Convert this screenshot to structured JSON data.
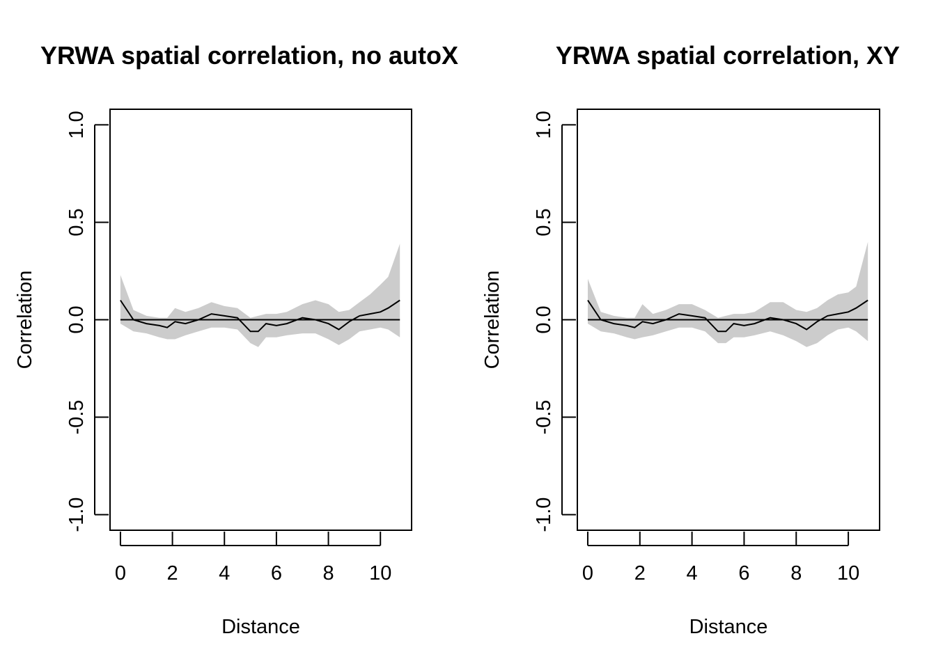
{
  "chart_data": [
    {
      "type": "area",
      "title": "YRWA spatial correlation, no autoX",
      "xlabel": "Distance",
      "ylabel": "Correlation",
      "xlim": [
        -0.4,
        11.2
      ],
      "ylim": [
        -1.08,
        1.08
      ],
      "xticks": [
        0,
        2,
        4,
        6,
        8,
        10
      ],
      "yticks": [
        -1.0,
        -0.5,
        0.0,
        0.5,
        1.0
      ],
      "xtick_labels": [
        "0",
        "2",
        "4",
        "6",
        "8",
        "10"
      ],
      "ytick_labels": [
        "-1.0",
        "-0.5",
        "0.0",
        "0.5",
        "1.0"
      ],
      "reference_line": {
        "y": 0,
        "x_from": 0,
        "x_to": 10.75
      },
      "grid": false,
      "legend": "none",
      "colors": {
        "band": "#cccccc",
        "line": "#000000"
      },
      "series": [
        {
          "x": [
            0.0,
            0.5,
            1.0,
            1.5,
            1.8,
            2.1,
            2.5,
            3.0,
            3.5,
            4.0,
            4.5,
            5.0,
            5.3,
            5.6,
            6.0,
            6.4,
            7.0,
            7.5,
            8.0,
            8.4,
            8.8,
            9.2,
            9.6,
            10.0,
            10.3,
            10.75
          ],
          "y": [
            0.1,
            0.0,
            -0.02,
            -0.03,
            -0.04,
            -0.01,
            -0.02,
            0.0,
            0.03,
            0.02,
            0.01,
            -0.06,
            -0.06,
            -0.02,
            -0.03,
            -0.02,
            0.01,
            0.0,
            -0.02,
            -0.05,
            -0.01,
            0.02,
            0.03,
            0.04,
            0.06,
            0.1
          ],
          "lower": [
            -0.02,
            -0.06,
            -0.07,
            -0.09,
            -0.1,
            -0.1,
            -0.08,
            -0.06,
            -0.04,
            -0.04,
            -0.05,
            -0.12,
            -0.14,
            -0.09,
            -0.09,
            -0.08,
            -0.07,
            -0.07,
            -0.1,
            -0.13,
            -0.1,
            -0.06,
            -0.05,
            -0.04,
            -0.05,
            -0.09
          ],
          "upper": [
            0.23,
            0.05,
            0.02,
            0.01,
            0.01,
            0.06,
            0.04,
            0.06,
            0.09,
            0.07,
            0.06,
            0.01,
            0.02,
            0.03,
            0.03,
            0.04,
            0.08,
            0.1,
            0.08,
            0.04,
            0.05,
            0.09,
            0.13,
            0.18,
            0.22,
            0.39
          ]
        }
      ]
    },
    {
      "type": "area",
      "title": "YRWA spatial correlation, XY",
      "xlabel": "Distance",
      "ylabel": "Correlation",
      "xlim": [
        -0.4,
        11.2
      ],
      "ylim": [
        -1.08,
        1.08
      ],
      "xticks": [
        0,
        2,
        4,
        6,
        8,
        10
      ],
      "yticks": [
        -1.0,
        -0.5,
        0.0,
        0.5,
        1.0
      ],
      "xtick_labels": [
        "0",
        "2",
        "4",
        "6",
        "8",
        "10"
      ],
      "ytick_labels": [
        "-1.0",
        "-0.5",
        "0.0",
        "0.5",
        "1.0"
      ],
      "reference_line": {
        "y": 0,
        "x_from": 0,
        "x_to": 10.75
      },
      "grid": false,
      "legend": "none",
      "colors": {
        "band": "#cccccc",
        "line": "#000000"
      },
      "series": [
        {
          "x": [
            0.0,
            0.5,
            1.0,
            1.5,
            1.8,
            2.1,
            2.5,
            3.0,
            3.5,
            4.0,
            4.5,
            5.0,
            5.3,
            5.6,
            6.0,
            6.4,
            7.0,
            7.5,
            8.0,
            8.4,
            8.8,
            9.2,
            9.6,
            10.0,
            10.3,
            10.75
          ],
          "y": [
            0.1,
            0.0,
            -0.02,
            -0.03,
            -0.04,
            -0.01,
            -0.02,
            0.0,
            0.03,
            0.02,
            0.01,
            -0.06,
            -0.06,
            -0.02,
            -0.03,
            -0.02,
            0.01,
            0.0,
            -0.02,
            -0.05,
            -0.01,
            0.02,
            0.03,
            0.04,
            0.06,
            0.1
          ],
          "lower": [
            -0.02,
            -0.06,
            -0.07,
            -0.09,
            -0.1,
            -0.09,
            -0.08,
            -0.06,
            -0.04,
            -0.04,
            -0.06,
            -0.12,
            -0.12,
            -0.09,
            -0.09,
            -0.08,
            -0.06,
            -0.08,
            -0.11,
            -0.14,
            -0.12,
            -0.08,
            -0.05,
            -0.04,
            -0.06,
            -0.11
          ],
          "upper": [
            0.21,
            0.04,
            0.02,
            0.01,
            0.01,
            0.08,
            0.03,
            0.05,
            0.08,
            0.08,
            0.05,
            0.01,
            0.02,
            0.03,
            0.03,
            0.04,
            0.09,
            0.09,
            0.05,
            0.04,
            0.06,
            0.1,
            0.13,
            0.14,
            0.17,
            0.4
          ]
        }
      ]
    }
  ]
}
